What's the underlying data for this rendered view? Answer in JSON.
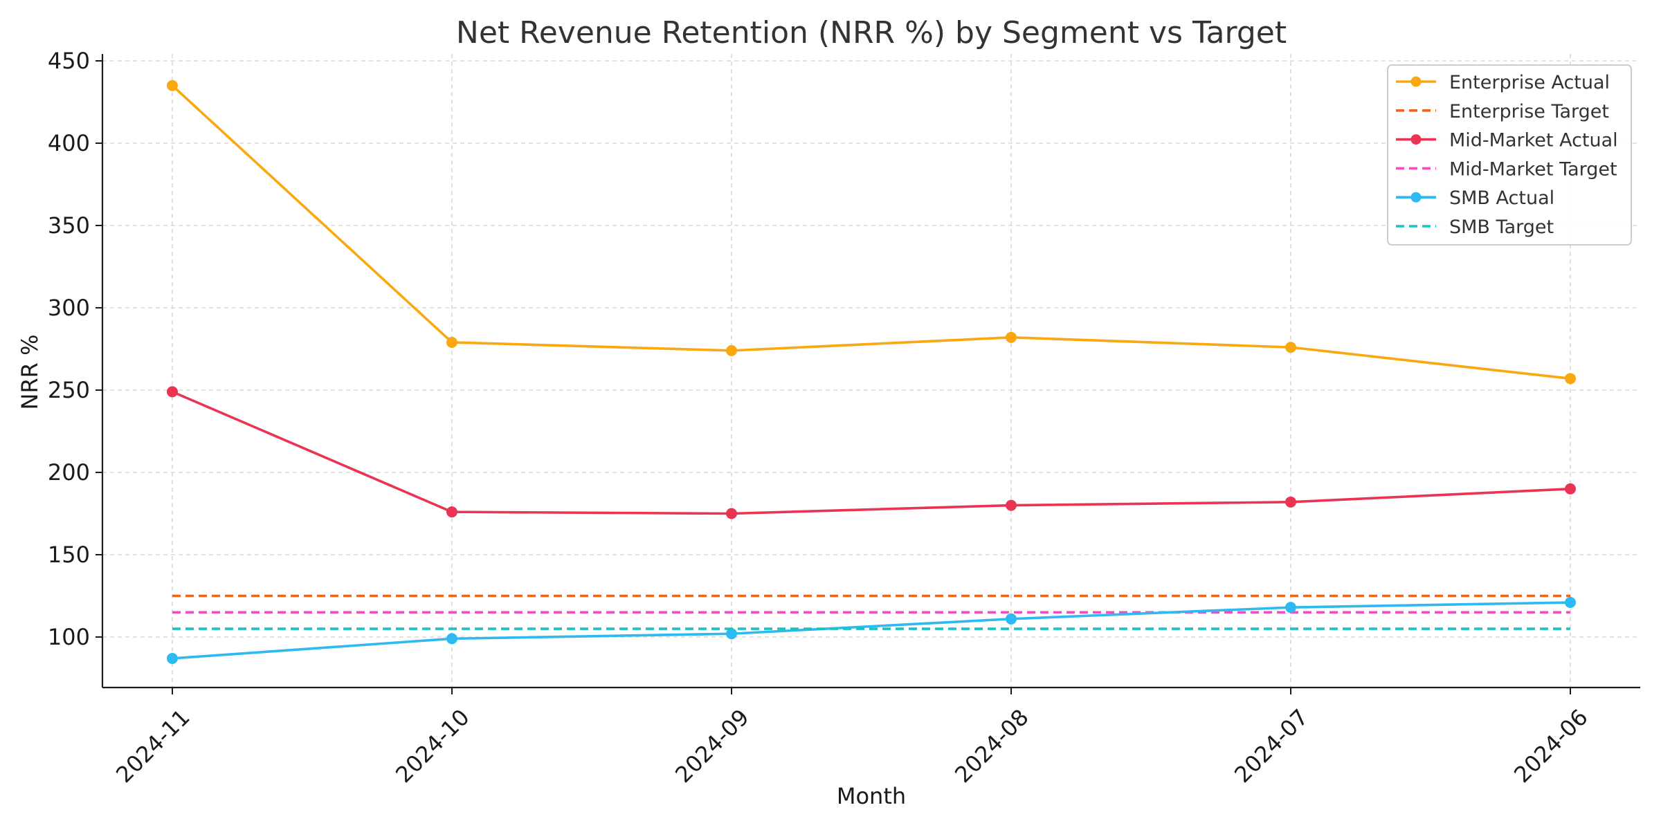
{
  "chart_data": {
    "type": "line",
    "title": "Net Revenue Retention (NRR %) by Segment vs Target",
    "xlabel": "Month",
    "ylabel": "NRR %",
    "categories": [
      "2024-11",
      "2024-10",
      "2024-09",
      "2024-08",
      "2024-07",
      "2024-06"
    ],
    "ylim": [
      70,
      450
    ],
    "yticks": [
      100,
      150,
      200,
      250,
      300,
      350,
      400,
      450
    ],
    "grid": true,
    "legend_position": "top-right",
    "series": [
      {
        "name": "Enterprise Actual",
        "color": "#F9A80F",
        "style": "solid",
        "markers": true,
        "values": [
          435,
          279,
          274,
          282,
          276,
          257
        ]
      },
      {
        "name": "Enterprise Target",
        "color": "#F06418",
        "style": "dashed",
        "markers": false,
        "values": [
          125,
          125,
          125,
          125,
          125,
          125
        ]
      },
      {
        "name": "Mid-Market Actual",
        "color": "#EB3453",
        "style": "solid",
        "markers": true,
        "values": [
          249,
          176,
          175,
          180,
          182,
          190
        ]
      },
      {
        "name": "Mid-Market Target",
        "color": "#F04FC0",
        "style": "dashed",
        "markers": false,
        "values": [
          115,
          115,
          115,
          115,
          115,
          115
        ]
      },
      {
        "name": "SMB Actual",
        "color": "#2DB9F1",
        "style": "solid",
        "markers": true,
        "values": [
          87,
          99,
          102,
          111,
          118,
          121
        ]
      },
      {
        "name": "SMB Target",
        "color": "#17C4C0",
        "style": "dashed",
        "markers": false,
        "values": [
          105,
          105,
          105,
          105,
          105,
          105
        ]
      }
    ]
  }
}
